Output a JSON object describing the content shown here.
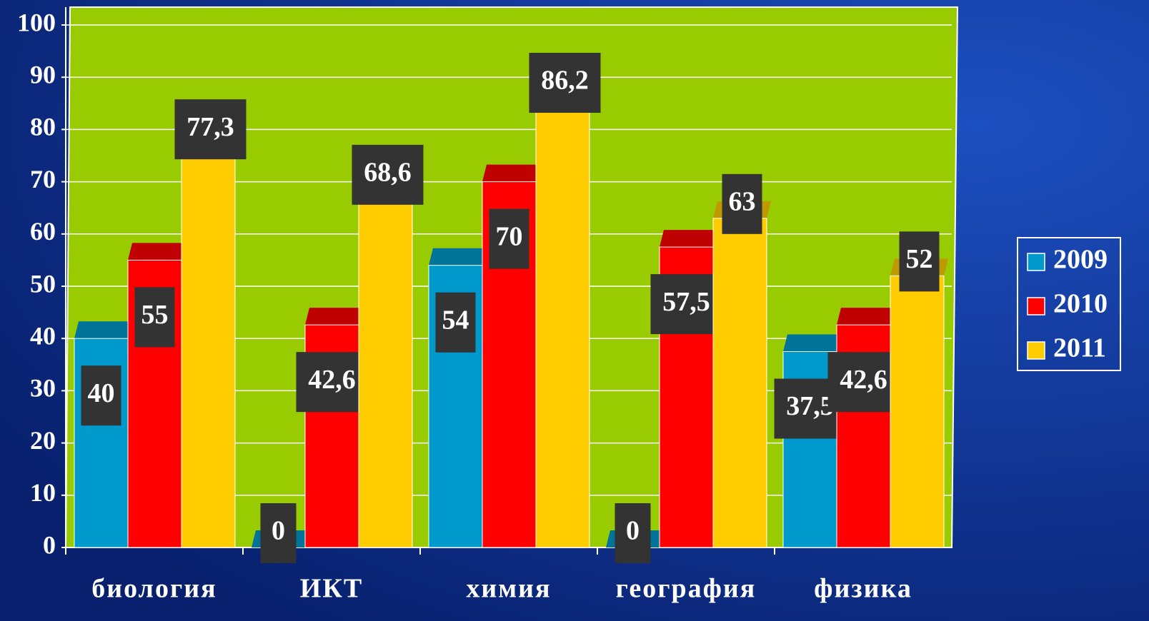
{
  "chart_data": {
    "type": "bar",
    "categories": [
      "биология",
      "ИКТ",
      "химия",
      "география",
      "физика"
    ],
    "series": [
      {
        "name": "2009",
        "color": "#0099cc",
        "values": [
          40,
          0,
          54,
          0,
          37.5
        ],
        "value_labels": [
          "40",
          "0",
          "54",
          "0",
          "37,5"
        ]
      },
      {
        "name": "2010",
        "color": "#ff0000",
        "values": [
          55,
          42.6,
          70,
          57.5,
          42.6
        ],
        "value_labels": [
          "55",
          "42,6",
          "70",
          "57,5",
          "42,6"
        ]
      },
      {
        "name": "2011",
        "color": "#ffcc00",
        "values": [
          77.3,
          68.6,
          86.2,
          63,
          52
        ],
        "value_labels": [
          "77,3",
          "68,6",
          "86,2",
          "63",
          "52"
        ]
      }
    ],
    "ylim": [
      0,
      100
    ],
    "yticks": [
      0,
      10,
      20,
      30,
      40,
      50,
      60,
      70,
      80,
      90,
      100
    ],
    "grid": true,
    "legend": "right"
  }
}
